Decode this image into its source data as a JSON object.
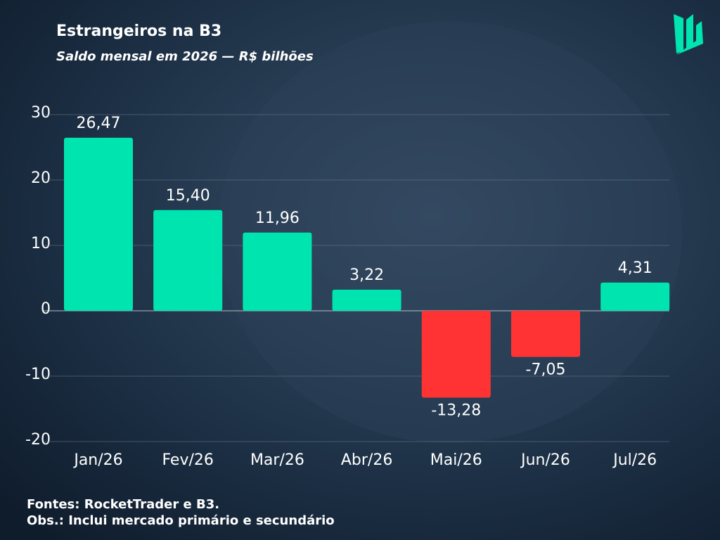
{
  "chart_data": {
    "type": "bar",
    "title": "Estrangeiros na B3",
    "subtitle": "Saldo mensal em 2026 — R$ bilhões",
    "categories": [
      "Jan/26",
      "Fev/26",
      "Mar/26",
      "Abr/26",
      "Mai/26",
      "Jun/26",
      "Jul/26"
    ],
    "values": [
      26.47,
      15.4,
      11.96,
      3.22,
      -13.28,
      -7.05,
      4.31
    ],
    "value_labels": [
      "26,47",
      "15,40",
      "11,96",
      "3,22",
      "-13,28",
      "-7,05",
      "4,31"
    ],
    "colors": [
      "#00e5b0",
      "#00e5b0",
      "#00e5b0",
      "#00e5b0",
      "#ff3333",
      "#ff3333",
      "#00e5b0"
    ],
    "ylim": [
      -20,
      30
    ],
    "yticks": [
      -20,
      -10,
      0,
      10,
      20,
      30
    ],
    "grid": true,
    "source": "Fontes: RocketTrader e B3.",
    "note": "Obs.: Inclui mercado primário e secundário"
  }
}
